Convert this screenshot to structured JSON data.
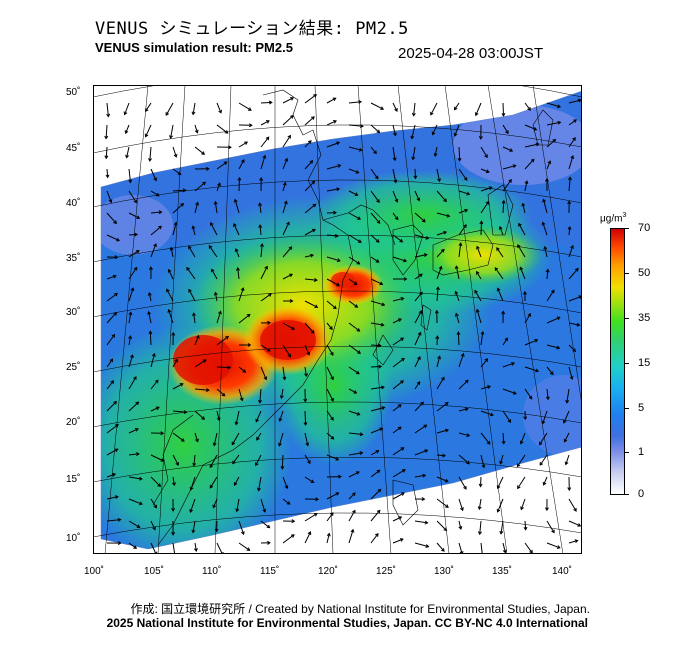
{
  "header": {
    "title_jp": "VENUS シミュレーション結果: PM2.5",
    "title_en": "VENUS simulation result: PM2.5",
    "timestamp": "2025-04-28 03:00JST"
  },
  "map": {
    "lat_labels": [
      "50˚",
      "45˚",
      "40˚",
      "35˚",
      "30˚",
      "25˚",
      "20˚",
      "15˚",
      "10˚"
    ],
    "lon_labels": [
      "100˚",
      "105˚",
      "110˚",
      "115˚",
      "120˚",
      "125˚",
      "130˚",
      "135˚",
      "140˚"
    ]
  },
  "colorbar": {
    "unit_prefix": "μg/m",
    "unit_exp": "3",
    "ticks": [
      "70",
      "50",
      "35",
      "15",
      "5",
      "1",
      "0"
    ]
  },
  "footer": {
    "credit": "作成: 国立環境研究所 / Created by National Institute for Environmental Studies, Japan.",
    "license": "2025 National Institute for Environmental Studies, Japan. CC BY-NC 4.0 International"
  }
}
